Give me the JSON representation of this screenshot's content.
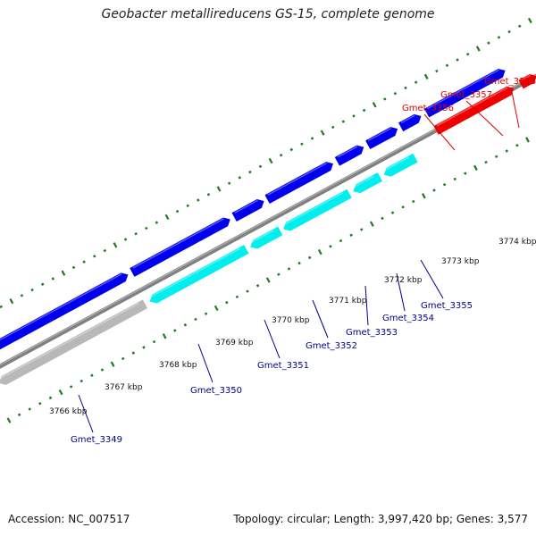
{
  "title": "Geobacter metallireducens GS-15, complete genome",
  "footer": {
    "accession": "Accession: NC_007517",
    "stats": "Topology: circular; Length: 3,997,420 bp; Genes: 3,577"
  },
  "colors": {
    "backbone": "#808080",
    "forward_cds": "#0000ee",
    "reverse_cds": "#00eeee",
    "reverse_gray": "#b8b8b8",
    "rna": "#ee0000",
    "ticks": "#1f7a1f",
    "forward_label": "#00008b",
    "rna_label": "#dd0000"
  },
  "kbp_labels": [
    "3766 kbp",
    "3767 kbp",
    "3768 kbp",
    "3769 kbp",
    "3770 kbp",
    "3771 kbp",
    "3772 kbp",
    "3773 kbp",
    "3774 kbp"
  ],
  "genes": [
    {
      "name": "Gmet_3349",
      "color": "forward_label"
    },
    {
      "name": "Gmet_3350",
      "color": "forward_label"
    },
    {
      "name": "Gmet_3351",
      "color": "forward_label"
    },
    {
      "name": "Gmet_3352",
      "color": "forward_label"
    },
    {
      "name": "Gmet_3353",
      "color": "forward_label"
    },
    {
      "name": "Gmet_3354",
      "color": "forward_label"
    },
    {
      "name": "Gmet_3355",
      "color": "forward_label"
    },
    {
      "name": "Gmet_3356",
      "color": "rna_label"
    },
    {
      "name": "Gmet_3357",
      "color": "rna_label"
    },
    {
      "name": "Gmet_3358",
      "color": "rna_label"
    }
  ]
}
